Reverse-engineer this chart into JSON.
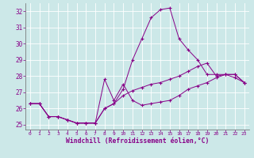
{
  "xlabel": "Windchill (Refroidissement éolien,°C)",
  "background_color": "#cce8e8",
  "line_color": "#880088",
  "grid_color": "#aadddd",
  "xlim": [
    -0.5,
    23.5
  ],
  "ylim": [
    24.7,
    32.5
  ],
  "yticks": [
    25,
    26,
    27,
    28,
    29,
    30,
    31,
    32
  ],
  "xticks": [
    0,
    1,
    2,
    3,
    4,
    5,
    6,
    7,
    8,
    9,
    10,
    11,
    12,
    13,
    14,
    15,
    16,
    17,
    18,
    19,
    20,
    21,
    22,
    23
  ],
  "series": [
    {
      "x": [
        0,
        1,
        2,
        3,
        4,
        5,
        6,
        7,
        8,
        9,
        10,
        11,
        12,
        13,
        14,
        15,
        16,
        17,
        18,
        19,
        20,
        21,
        22,
        23
      ],
      "y": [
        26.3,
        26.3,
        25.5,
        25.5,
        25.3,
        25.1,
        25.1,
        25.1,
        26.0,
        26.3,
        27.2,
        29.0,
        30.3,
        31.6,
        32.1,
        32.2,
        30.3,
        29.6,
        29.0,
        28.1,
        28.1,
        28.1,
        27.9,
        27.6
      ]
    },
    {
      "x": [
        0,
        1,
        2,
        3,
        4,
        5,
        6,
        7,
        8,
        9,
        10,
        11,
        12,
        13,
        14,
        15,
        16,
        17,
        18,
        19,
        20,
        21,
        22,
        23
      ],
      "y": [
        26.3,
        26.3,
        25.5,
        25.5,
        25.3,
        25.1,
        25.1,
        25.1,
        27.8,
        26.5,
        27.5,
        26.5,
        26.2,
        26.3,
        26.4,
        26.5,
        26.8,
        27.2,
        27.4,
        27.6,
        27.9,
        28.1,
        28.1,
        27.6
      ]
    },
    {
      "x": [
        0,
        1,
        2,
        3,
        4,
        5,
        6,
        7,
        8,
        9,
        10,
        11,
        12,
        13,
        14,
        15,
        16,
        17,
        18,
        19,
        20,
        21,
        22,
        23
      ],
      "y": [
        26.3,
        26.3,
        25.5,
        25.5,
        25.3,
        25.1,
        25.1,
        25.1,
        26.0,
        26.3,
        26.8,
        27.1,
        27.3,
        27.5,
        27.6,
        27.8,
        28.0,
        28.3,
        28.6,
        28.8,
        28.0,
        28.1,
        28.1,
        27.6
      ]
    }
  ]
}
